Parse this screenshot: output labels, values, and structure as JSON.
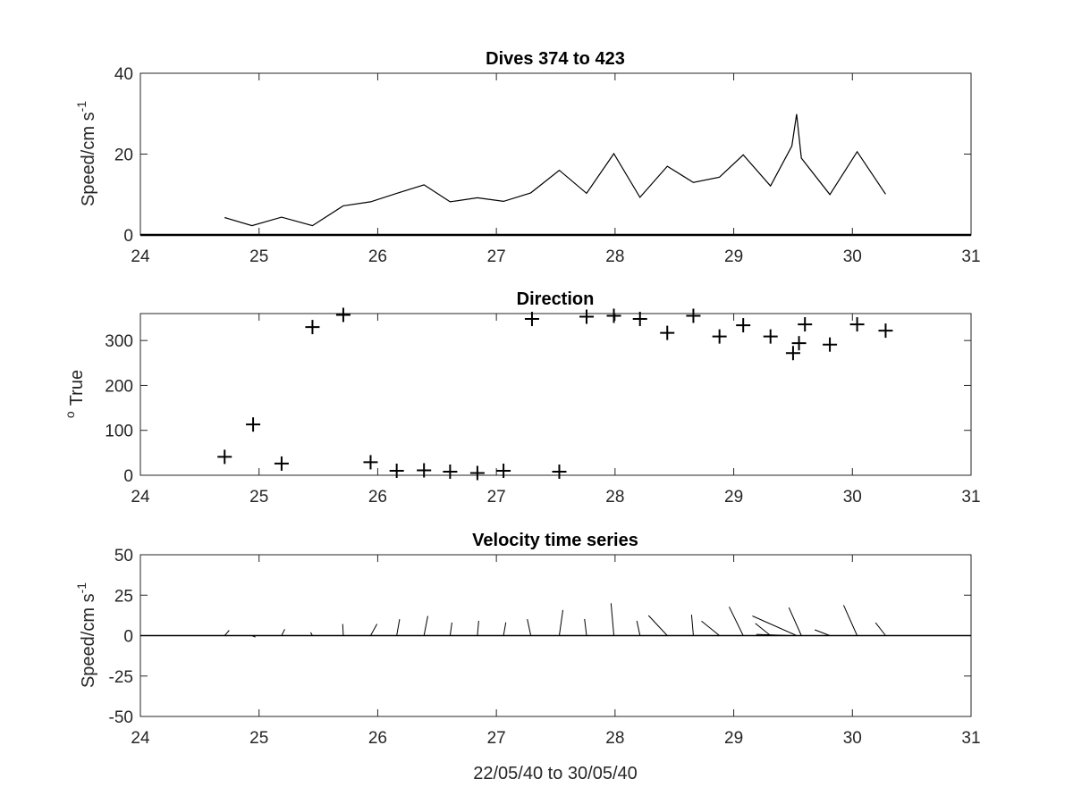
{
  "chart_data": [
    {
      "id": "speed",
      "type": "line",
      "title": "Dives 374 to 423",
      "xlabel": "",
      "ylabel": "Speed/cm s",
      "ylabel_sup": "-1",
      "xlim": [
        24,
        31
      ],
      "ylim": [
        0,
        40
      ],
      "xticks": [
        24,
        25,
        26,
        27,
        28,
        29,
        30,
        31
      ],
      "yticks": [
        0,
        20,
        40
      ],
      "grid": false,
      "series": [
        {
          "x": [
            24.71,
            24.94,
            25.19,
            25.45,
            25.71,
            25.94,
            26.16,
            26.39,
            26.61,
            26.84,
            27.06,
            27.29,
            27.53,
            27.76,
            27.99,
            28.21,
            28.44,
            28.66,
            28.88,
            29.08,
            29.31,
            29.49,
            29.53,
            29.57,
            29.81,
            30.04,
            30.28
          ],
          "y": [
            4.3,
            2.3,
            4.4,
            2.3,
            7.2,
            8.2,
            10.3,
            12.4,
            8.2,
            9.2,
            8.3,
            10.4,
            16.0,
            10.3,
            20.1,
            9.3,
            17.0,
            13.0,
            14.3,
            19.8,
            12.1,
            22.0,
            29.9,
            19.0,
            10.0,
            20.6,
            10.1
          ]
        }
      ]
    },
    {
      "id": "direction",
      "type": "scatter",
      "title": "Direction",
      "xlabel": "",
      "ylabel": "True",
      "ylabel_sup": "o",
      "xlim": [
        24,
        31
      ],
      "ylim": [
        0,
        360
      ],
      "xticks": [
        24,
        25,
        26,
        27,
        28,
        29,
        30,
        31
      ],
      "yticks": [
        0,
        100,
        200,
        300
      ],
      "ytick_labels": [
        "0",
        "100",
        "200",
        "300"
      ],
      "grid": false,
      "marker": "plus",
      "series": [
        {
          "x": [
            24.71,
            24.95,
            25.19,
            25.45,
            25.71,
            25.94,
            26.16,
            26.39,
            26.61,
            26.84,
            27.06,
            27.3,
            27.53,
            27.76,
            27.99,
            28.21,
            28.44,
            28.66,
            28.88,
            29.08,
            29.31,
            29.5,
            29.55,
            29.6,
            29.81,
            30.04,
            30.28
          ],
          "y": [
            41,
            113,
            26,
            330,
            357,
            29,
            10,
            11,
            8,
            5,
            10,
            348,
            8,
            353,
            355,
            348,
            317,
            355,
            309,
            334,
            309,
            272,
            294,
            336,
            291,
            336,
            322
          ]
        }
      ]
    },
    {
      "id": "velocity",
      "type": "quiver",
      "title": "Velocity time series",
      "xlabel": "22/05/40 to 30/05/40",
      "ylabel": "Speed/cm s",
      "ylabel_sup": "-1",
      "xlim": [
        24,
        31
      ],
      "ylim": [
        -50,
        50
      ],
      "xticks": [
        24,
        25,
        26,
        27,
        28,
        29,
        30,
        31
      ],
      "yticks": [
        -50,
        -25,
        0,
        25,
        50
      ],
      "grid": false,
      "vectors": {
        "x": [
          24.71,
          24.94,
          25.19,
          25.45,
          25.71,
          25.94,
          26.16,
          26.39,
          26.61,
          26.84,
          27.06,
          27.29,
          27.53,
          27.76,
          27.99,
          28.21,
          28.44,
          28.66,
          28.88,
          29.08,
          29.31,
          29.49,
          29.53,
          29.57,
          29.81,
          30.04,
          30.28
        ],
        "speed": [
          4.3,
          2.3,
          4.4,
          2.3,
          7.2,
          8.2,
          10.3,
          12.4,
          8.2,
          9.2,
          8.3,
          10.4,
          16.0,
          10.3,
          20.1,
          9.3,
          17.0,
          13.0,
          14.3,
          19.8,
          12.1,
          22.0,
          29.9,
          19.0,
          10.0,
          20.6,
          10.1
        ],
        "direction_deg": [
          41,
          113,
          26,
          330,
          357,
          29,
          10,
          11,
          8,
          5,
          10,
          348,
          8,
          353,
          355,
          348,
          317,
          355,
          309,
          334,
          309,
          272,
          294,
          336,
          291,
          336,
          322
        ]
      }
    }
  ]
}
